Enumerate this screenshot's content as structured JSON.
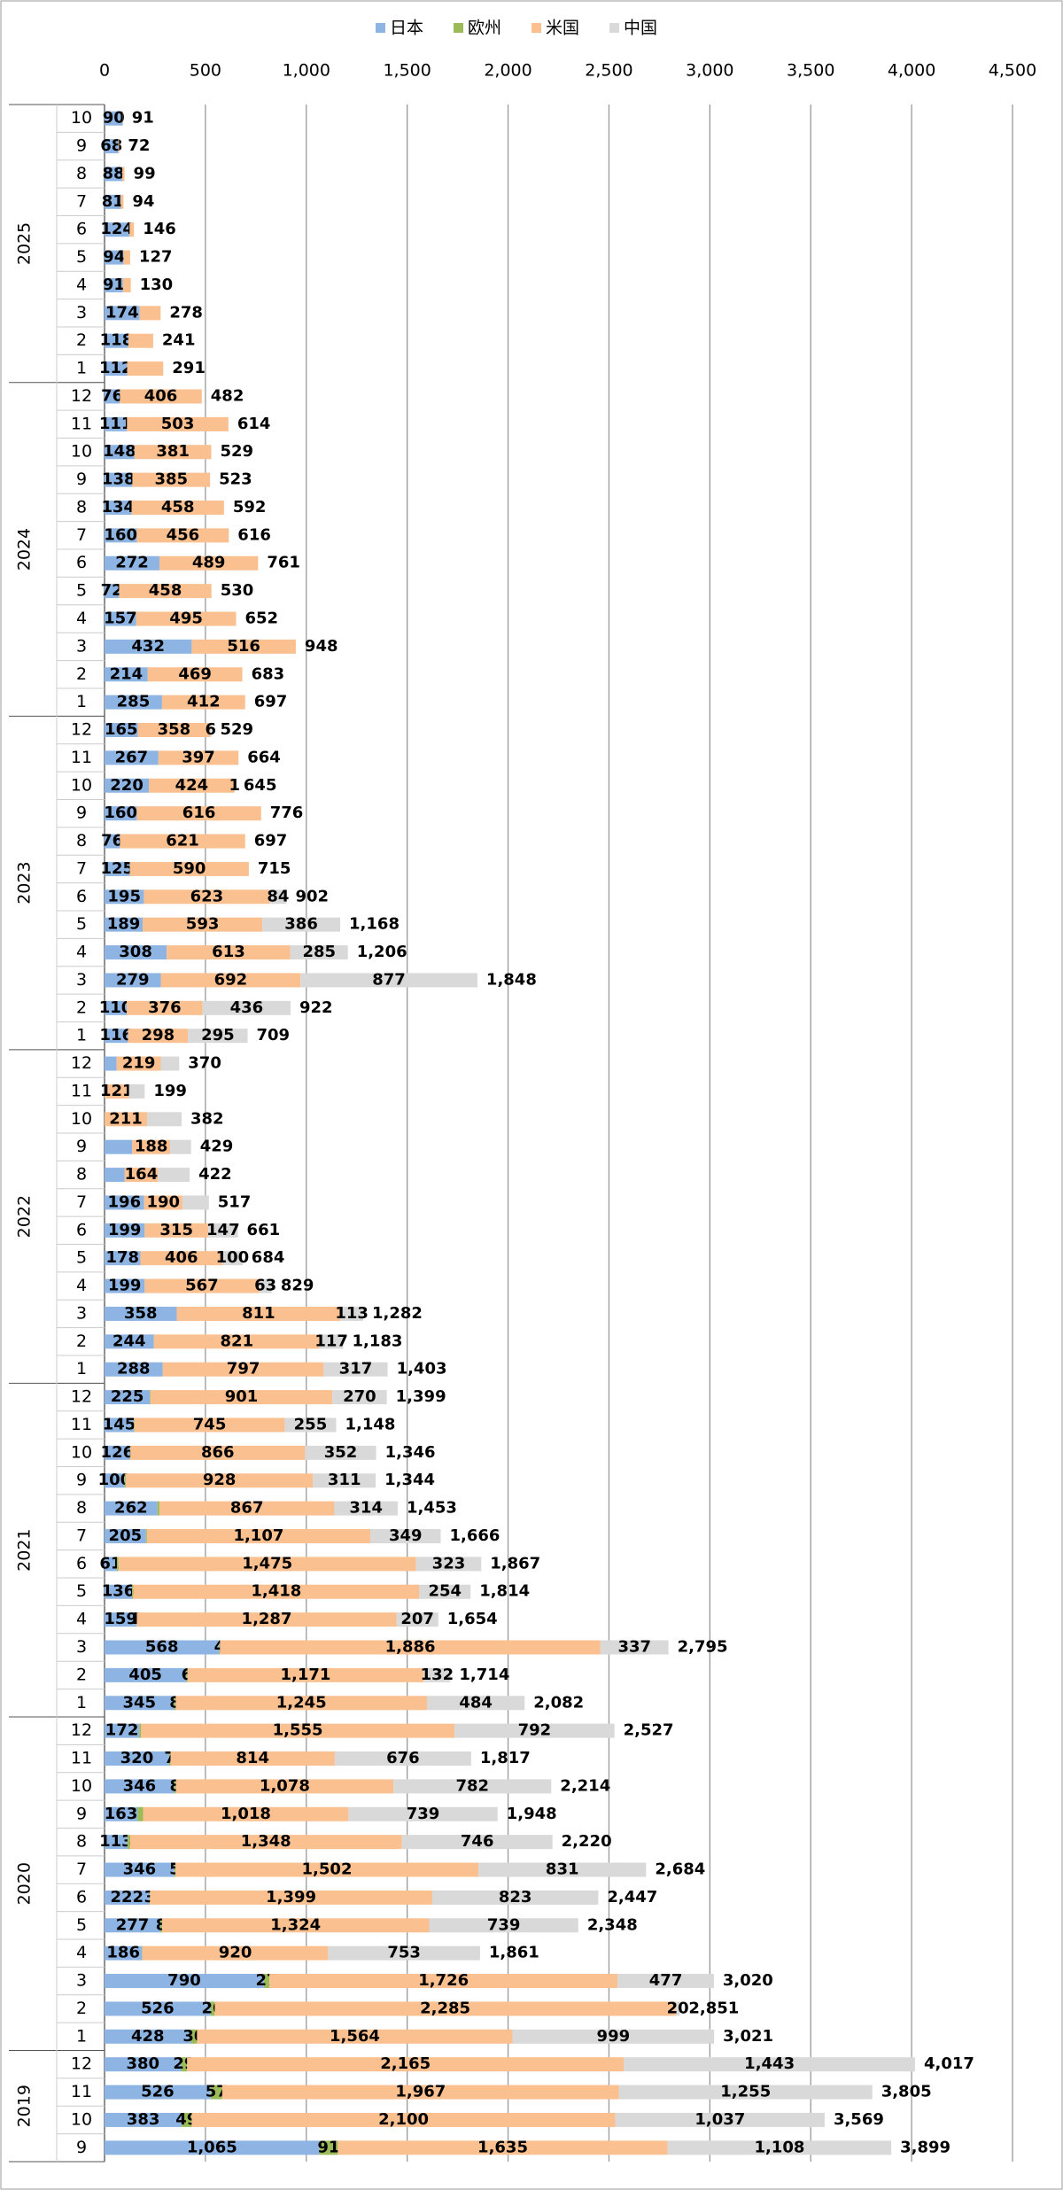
{
  "chart_data": {
    "type": "stacked-bar-horizontal",
    "xlim": [
      0,
      4500
    ],
    "xticks": [
      0,
      500,
      {
        "value": 1000,
        "label": "1,000"
      },
      {
        "value": 1500,
        "label": "1,500"
      },
      {
        "value": 2000,
        "label": "2,000"
      },
      {
        "value": 2500,
        "label": "2,500"
      },
      {
        "value": 3000,
        "label": "3,000"
      },
      {
        "value": 3500,
        "label": "3,500"
      },
      {
        "value": 4000,
        "label": "4,000"
      },
      {
        "value": 4500,
        "label": "4,500"
      }
    ],
    "grid": true,
    "legend": "top",
    "groups": [
      {
        "label": "2025",
        "months": [
          10,
          9,
          8,
          7,
          6,
          5,
          4,
          3,
          2,
          1
        ]
      },
      {
        "label": "2024",
        "months": [
          12,
          11,
          10,
          9,
          8,
          7,
          6,
          5,
          4,
          3,
          2,
          1
        ]
      },
      {
        "label": "2023",
        "months": [
          12,
          11,
          10,
          9,
          8,
          7,
          6,
          5,
          4,
          3,
          2,
          1
        ]
      },
      {
        "label": "2022",
        "months": [
          12,
          11,
          10,
          9,
          8,
          7,
          6,
          5,
          4,
          3,
          2,
          1
        ]
      },
      {
        "label": "2021",
        "months": [
          12,
          11,
          10,
          9,
          8,
          7,
          6,
          5,
          4,
          3,
          2,
          1
        ]
      },
      {
        "label": "2020",
        "months": [
          12,
          11,
          10,
          9,
          8,
          7,
          6,
          5,
          4,
          3,
          2,
          1
        ]
      },
      {
        "label": "2019",
        "months": [
          12,
          11,
          10,
          9
        ]
      }
    ],
    "series": [
      {
        "name": "日本",
        "color": "#8db4e2",
        "values": [
          90,
          68,
          88,
          81,
          124,
          94,
          91,
          174,
          118,
          112,
          76,
          111,
          148,
          138,
          134,
          160,
          272,
          72,
          157,
          432,
          214,
          285,
          165,
          267,
          220,
          160,
          76,
          125,
          195,
          189,
          308,
          279,
          110,
          116,
          60,
          null,
          null,
          137,
          100,
          196,
          199,
          178,
          199,
          358,
          244,
          288,
          225,
          145,
          126,
          100,
          262,
          205,
          61,
          136,
          159,
          568,
          405,
          345,
          172,
          320,
          346,
          163,
          113,
          346,
          222,
          277,
          186,
          790,
          526,
          428,
          380,
          526,
          383,
          1065
        ],
        "value_labels": [
          "90",
          "68",
          "88",
          "81",
          "124",
          "94",
          "91",
          "174",
          "118",
          "112",
          "76",
          "111",
          "148",
          "138",
          "134",
          "160",
          "272",
          "72",
          "157",
          "432",
          "214",
          "285",
          "165",
          "267",
          "220",
          "160",
          "76",
          "125",
          "195",
          "189",
          "308",
          "279",
          "110",
          "116",
          null,
          null,
          null,
          null,
          null,
          "196",
          "199",
          "178",
          "199",
          "358",
          "244",
          "288",
          "225",
          "145",
          "126",
          "100",
          "262",
          "205",
          "61",
          "136",
          "159",
          "568",
          "405",
          "345",
          "172",
          "320",
          "346",
          "163",
          "113",
          "346",
          "222",
          "277",
          "186",
          "790",
          "526",
          "428",
          "380",
          "526",
          "383",
          "1,065"
        ]
      },
      {
        "name": "欧州",
        "color": "#9bbb59",
        "values": [
          null,
          null,
          null,
          null,
          null,
          null,
          null,
          null,
          null,
          null,
          null,
          null,
          null,
          null,
          null,
          null,
          null,
          null,
          null,
          null,
          null,
          null,
          null,
          null,
          null,
          null,
          null,
          null,
          null,
          null,
          null,
          null,
          null,
          null,
          null,
          null,
          null,
          null,
          null,
          null,
          null,
          null,
          null,
          null,
          1,
          1,
          3,
          3,
          2,
          5,
          10,
          5,
          8,
          6,
          1,
          4,
          6,
          8,
          8,
          7,
          8,
          28,
          13,
          5,
          3,
          8,
          2,
          27,
          20,
          30,
          29,
          57,
          49,
          91
        ],
        "value_labels": [
          null,
          null,
          null,
          null,
          null,
          null,
          null,
          null,
          null,
          null,
          null,
          null,
          null,
          null,
          null,
          null,
          null,
          null,
          null,
          null,
          null,
          null,
          null,
          null,
          null,
          null,
          null,
          null,
          null,
          null,
          null,
          null,
          null,
          null,
          null,
          null,
          null,
          null,
          null,
          null,
          null,
          null,
          null,
          null,
          null,
          null,
          null,
          null,
          null,
          null,
          null,
          null,
          null,
          null,
          "1",
          "4",
          "6",
          "8",
          null,
          "7",
          "8",
          null,
          null,
          "5",
          "3",
          "8",
          null,
          "27",
          "20",
          "30",
          "29",
          "57",
          "49",
          "91"
        ]
      },
      {
        "name": "米国",
        "color": "#fac090",
        "values": [
          1,
          4,
          11,
          13,
          22,
          33,
          39,
          104,
          123,
          179,
          406,
          503,
          381,
          385,
          458,
          456,
          489,
          458,
          495,
          516,
          469,
          412,
          358,
          397,
          424,
          616,
          621,
          590,
          623,
          593,
          613,
          692,
          376,
          298,
          219,
          121,
          211,
          188,
          164,
          190,
          315,
          406,
          567,
          811,
          821,
          797,
          901,
          745,
          866,
          928,
          867,
          1107,
          1475,
          1418,
          1287,
          1886,
          1171,
          1245,
          1555,
          814,
          1078,
          1018,
          1348,
          1502,
          1399,
          1324,
          920,
          1726,
          2285,
          1564,
          2165,
          1967,
          2100,
          1635
        ],
        "value_labels": [
          null,
          null,
          null,
          null,
          null,
          null,
          null,
          null,
          null,
          null,
          "406",
          "503",
          "381",
          "385",
          "458",
          "456",
          "489",
          "458",
          "495",
          "516",
          "469",
          "412",
          "358",
          "397",
          "424",
          "616",
          "621",
          "590",
          "623",
          "593",
          "613",
          "692",
          "376",
          "298",
          "219",
          "121",
          "211",
          "188",
          "164",
          "190",
          "315",
          "406",
          "567",
          "811",
          "821",
          "797",
          "901",
          "745",
          "866",
          "928",
          "867",
          "1,107",
          "1,475",
          "1,418",
          "1,287",
          "1,886",
          "1,171",
          "1,245",
          "1,555",
          "814",
          "1,078",
          "1,018",
          "1,348",
          "1,502",
          "1,399",
          "1,324",
          "920",
          "1,726",
          "2,285",
          "1,564",
          "2,165",
          "1,967",
          "2,100",
          "1,635"
        ]
      },
      {
        "name": "中国",
        "color": "#d9d9d9",
        "values": [
          null,
          null,
          null,
          null,
          null,
          null,
          null,
          null,
          null,
          null,
          null,
          null,
          null,
          null,
          null,
          null,
          null,
          null,
          null,
          null,
          null,
          null,
          6,
          null,
          1,
          null,
          null,
          null,
          84,
          386,
          285,
          877,
          436,
          295,
          91,
          78,
          171,
          104,
          158,
          131,
          147,
          100,
          63,
          113,
          117,
          317,
          270,
          255,
          352,
          311,
          314,
          349,
          323,
          254,
          207,
          337,
          132,
          484,
          792,
          676,
          782,
          739,
          746,
          831,
          823,
          739,
          753,
          477,
          20,
          999,
          1443,
          1255,
          1037,
          1108
        ],
        "value_labels": [
          null,
          null,
          null,
          null,
          null,
          null,
          null,
          null,
          null,
          null,
          null,
          null,
          null,
          null,
          null,
          null,
          null,
          null,
          null,
          null,
          null,
          null,
          "6",
          null,
          "1",
          null,
          null,
          null,
          "84",
          "386",
          "285",
          "877",
          "436",
          "295",
          null,
          null,
          null,
          null,
          null,
          null,
          "147",
          "100",
          "63",
          "113",
          "117",
          "317",
          "270",
          "255",
          "352",
          "311",
          "314",
          "349",
          "323",
          "254",
          "207",
          "337",
          "132",
          "484",
          "792",
          "676",
          "782",
          "739",
          "746",
          "831",
          "823",
          "739",
          "753",
          "477",
          "20",
          "999",
          "1,443",
          "1,255",
          "1,037",
          "1,108"
        ]
      }
    ],
    "totals": {
      "values": [
        91,
        72,
        99,
        94,
        146,
        127,
        130,
        278,
        241,
        291,
        482,
        614,
        529,
        523,
        592,
        616,
        761,
        530,
        652,
        948,
        683,
        697,
        529,
        664,
        645,
        776,
        697,
        715,
        902,
        1168,
        1206,
        1848,
        922,
        709,
        370,
        199,
        382,
        429,
        422,
        517,
        661,
        684,
        829,
        1282,
        1183,
        1403,
        1399,
        1148,
        1346,
        1344,
        1453,
        1666,
        1867,
        1814,
        1654,
        2795,
        1714,
        2082,
        2527,
        1817,
        2214,
        1948,
        2220,
        2684,
        2447,
        2348,
        1861,
        3020,
        2851,
        3021,
        4017,
        3805,
        3569,
        3899
      ],
      "value_labels": [
        "91",
        "72",
        "99",
        "94",
        "146",
        "127",
        "130",
        "278",
        "241",
        "291",
        "482",
        "614",
        "529",
        "523",
        "592",
        "616",
        "761",
        "530",
        "652",
        "948",
        "683",
        "697",
        "529",
        "664",
        "645",
        "776",
        "697",
        "715",
        "902",
        "1,168",
        "1,206",
        "1,848",
        "922",
        "709",
        "370",
        "199",
        "382",
        "429",
        "422",
        "517",
        "661",
        "684",
        "829",
        "1,282",
        "1,183",
        "1,403",
        "1,399",
        "1,148",
        "1,346",
        "1,344",
        "1,453",
        "1,666",
        "1,867",
        "1,814",
        "1,654",
        "2,795",
        "1,714",
        "2,082",
        "2,527",
        "1,817",
        "2,214",
        "1,948",
        "2,220",
        "2,684",
        "2,447",
        "2,348",
        "1,861",
        "3,020",
        "2,851",
        "3,021",
        "4,017",
        "3,805",
        "3,569",
        "3,899"
      ]
    }
  }
}
